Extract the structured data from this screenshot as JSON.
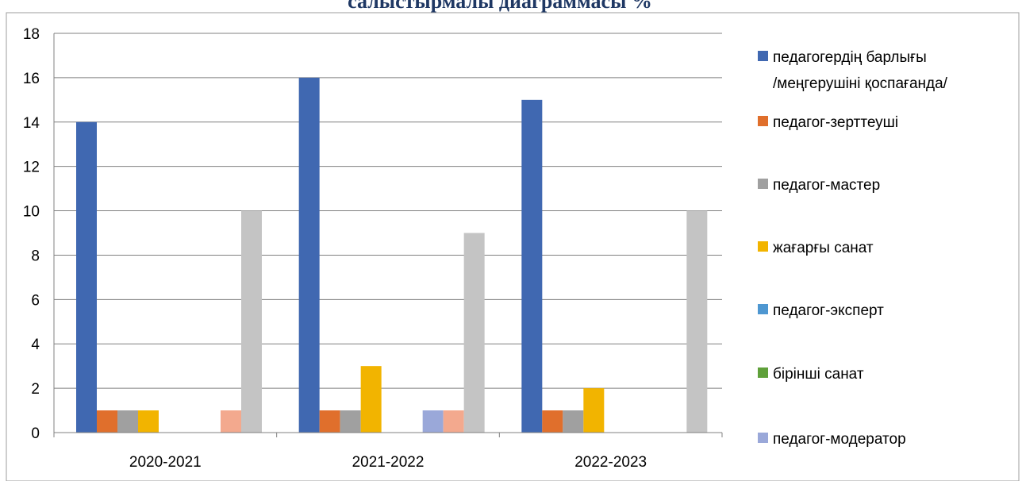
{
  "chart_data": {
    "type": "bar",
    "title": "салыстырмалы диаграммасы %",
    "xlabel": "",
    "ylabel": "",
    "categories": [
      "2020-2021",
      "2021-2022",
      "2022-2023"
    ],
    "ylim": [
      0,
      18
    ],
    "yticks": [
      0,
      2,
      4,
      6,
      8,
      10,
      12,
      14,
      16,
      18
    ],
    "grid": true,
    "legend_position": "right",
    "series": [
      {
        "name": "педагогердің барлығы /меңгерушіні қоспағанда/",
        "color": "#4068b1",
        "values": [
          14,
          16,
          15
        ],
        "in_legend": true
      },
      {
        "name": "педагог-зерттеуші",
        "color": "#e06f2c",
        "values": [
          1,
          1,
          1
        ],
        "in_legend": true
      },
      {
        "name": "педагог-мастер",
        "color": "#a0a0a0",
        "values": [
          1,
          1,
          1
        ],
        "in_legend": true
      },
      {
        "name": "жағарғы санат",
        "color": "#f2b400",
        "values": [
          1,
          3,
          2
        ],
        "in_legend": true
      },
      {
        "name": "педагог-эксперт",
        "color": "#4e97d1",
        "values": [
          0,
          0,
          0
        ],
        "in_legend": true
      },
      {
        "name": "бірінші санат",
        "color": "#5fa03a",
        "values": [
          0,
          0,
          0
        ],
        "in_legend": true
      },
      {
        "name": "педагог-модератор",
        "color": "#9aa8d9",
        "values": [
          0,
          1,
          0
        ],
        "in_legend": true
      },
      {
        "name": "",
        "color": "#f3a98e",
        "values": [
          1,
          1,
          0
        ],
        "in_legend": false
      },
      {
        "name": "",
        "color": "#c4c4c4",
        "values": [
          10,
          9,
          10
        ],
        "in_legend": false
      }
    ]
  },
  "colors": {
    "title": "#1f3864",
    "grid": "#808080",
    "axis": "#808080",
    "frame": "#9e9e9e"
  }
}
